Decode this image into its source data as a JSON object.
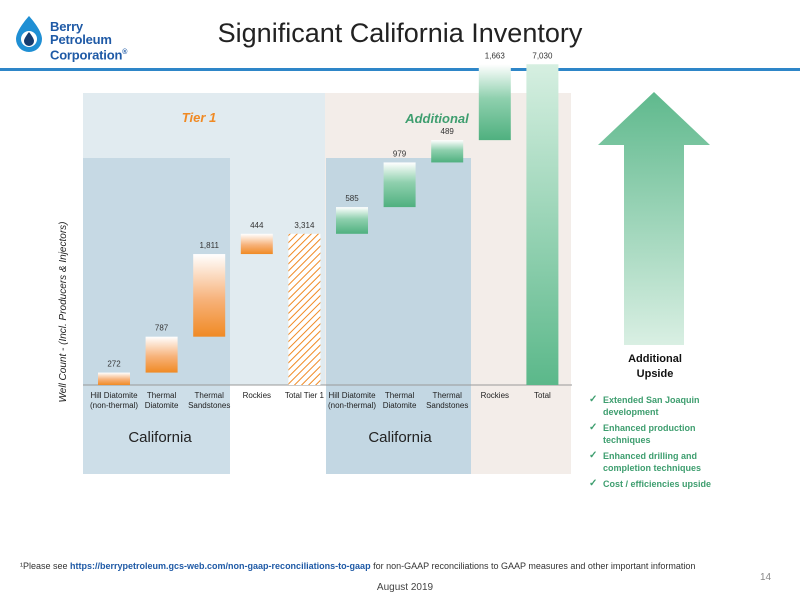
{
  "header": {
    "logo_lines": [
      "Berry",
      "Petroleum",
      "Corporation"
    ],
    "logo_mark": "®",
    "title": "Significant California Inventory"
  },
  "colors": {
    "brand_blue": "#1f5aa6",
    "orange": "#f08a24",
    "green": "#5bb88a",
    "tier1_panel": "#c9dbe4",
    "additional_panel": "#f3ede9",
    "california_band": "#bcd3e0",
    "upside_arrow": "#5fb98d"
  },
  "chart_data": {
    "type": "bar",
    "subtype": "waterfall",
    "ylabel": "Well Count - (Incl. Producers & Injectors)",
    "ylim": [
      0,
      8000
    ],
    "groups": [
      {
        "name": "Tier 1",
        "region_label": "California"
      },
      {
        "name": "Additional",
        "region_label": "California"
      }
    ],
    "categories": [
      {
        "label": [
          "Hill Diatomite",
          "(non-thermal)"
        ],
        "value": 272,
        "base": 0,
        "kind": "step",
        "color": "orange",
        "group": "Tier 1"
      },
      {
        "label": [
          "Thermal",
          "Diatomite"
        ],
        "value": 787,
        "base": 272,
        "kind": "step",
        "color": "orange",
        "group": "Tier 1"
      },
      {
        "label": [
          "Thermal",
          "Sandstones"
        ],
        "value": 1811,
        "base": 1059,
        "kind": "step",
        "color": "orange",
        "group": "Tier 1"
      },
      {
        "label": [
          "Rockies"
        ],
        "value": 444,
        "base": 2870,
        "kind": "step",
        "color": "orange",
        "group": "Tier 1"
      },
      {
        "label": [
          "Total Tier 1"
        ],
        "value": 3314,
        "base": 0,
        "kind": "total-hatched",
        "color": "orange",
        "group": "Tier 1"
      },
      {
        "label": [
          "Hill Diatomite",
          "(non-thermal)"
        ],
        "value": 585,
        "base": 3314,
        "kind": "step",
        "color": "green",
        "group": "Additional"
      },
      {
        "label": [
          "Thermal",
          "Diatomite"
        ],
        "value": 979,
        "base": 3899,
        "kind": "step",
        "color": "green",
        "group": "Additional"
      },
      {
        "label": [
          "Thermal",
          "Sandstones"
        ],
        "value": 489,
        "base": 4878,
        "kind": "step",
        "color": "green",
        "group": "Additional"
      },
      {
        "label": [
          "Rockies"
        ],
        "value": 1663,
        "base": 5367,
        "kind": "step",
        "color": "green",
        "group": "Additional"
      },
      {
        "label": [
          "Total"
        ],
        "value": 7030,
        "base": 0,
        "kind": "total",
        "color": "green",
        "group": "Additional"
      }
    ],
    "value_labels": [
      "272",
      "787",
      "1,811",
      "444",
      "3,314",
      "585",
      "979",
      "489",
      "1,663",
      "7,030"
    ]
  },
  "upside": {
    "title_lines": [
      "Additional",
      "Upside"
    ],
    "bullets": [
      "Extended San Joaquin development",
      "Enhanced production techniques",
      "Enhanced drilling and completion techniques",
      "Cost / efficiencies upside"
    ]
  },
  "footer": {
    "footnote_prefix": "¹Please see ",
    "footnote_link": "https://berrypetroleum.gcs-web.com/non-gaap-reconciliations-to-gaap",
    "footnote_suffix": " for non-GAAP reconciliations to GAAP measures and other important information",
    "date": "August 2019",
    "page": "14"
  }
}
